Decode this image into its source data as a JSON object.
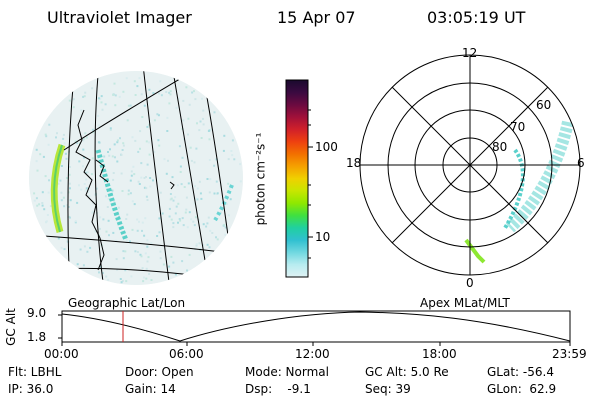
{
  "header": {
    "instrument": "Ultraviolet Imager",
    "date": "15 Apr 07",
    "time": "03:05:19 UT"
  },
  "left_panel": {
    "label": "Geographic Lat/Lon"
  },
  "right_panel": {
    "label": "Apex MLat/MLT",
    "mlt_labels": [
      "12",
      "18",
      "6",
      "0"
    ],
    "lat_labels": [
      "60",
      "70",
      "80"
    ]
  },
  "colorbar": {
    "unit_label": "photon cm⁻²s⁻¹",
    "ticks": [
      "100",
      "10"
    ],
    "colors": [
      "#1a0a2e",
      "#3a0a40",
      "#6a0a40",
      "#a0103a",
      "#d0202a",
      "#ee4010",
      "#f27000",
      "#f5a000",
      "#f0d000",
      "#c8e600",
      "#8fe800",
      "#40e040",
      "#20d0a0",
      "#30c0d0",
      "#70d8e0",
      "#b8ecf0",
      "#e0f2f4"
    ]
  },
  "altitude_plot": {
    "y_label": "GC Alt",
    "y_ticks": [
      "9.0",
      "1.8"
    ],
    "x_ticks": [
      "00:00",
      "06:00",
      "12:00",
      "18:00",
      "23:59"
    ],
    "marker_color": "#cc2222"
  },
  "info": {
    "flt": "Flt: LBHL",
    "door": "Door: Open",
    "mode": "Mode: Normal",
    "gc_alt": "GC Alt: 5.0 Re",
    "glat": "GLat: -56.4",
    "ip": "IP: 36.0",
    "gain": "Gain: 14",
    "dsp": "Dsp:    -9.1",
    "seq": "Seq: 39",
    "glon": "GLon:  62.9"
  }
}
